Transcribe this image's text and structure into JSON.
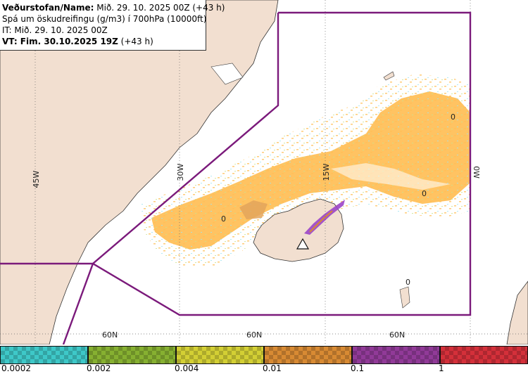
{
  "header": {
    "line1_label": "Veðurstofan/Name:",
    "line1_value": " Mið. 29. 10. 2025 00Z (+43 h)",
    "line2": "Spá um öskudreifingu (g/m3) í 700hPa (10000ft)",
    "line3": "IT: Mið. 29. 10. 2025 00Z",
    "line4_label": "VT:",
    "line4_value": " Fim. 30.10.2025 19Z",
    "line4_extra": " (+43 h)"
  },
  "map": {
    "meridians": [
      "45W",
      "30W",
      "15W",
      "0W"
    ],
    "parallels": [
      "60N",
      "60N",
      "60N"
    ],
    "contour_labels": [
      "0",
      "0",
      "0",
      "0"
    ],
    "colors": {
      "land": "#f2dfd0",
      "sea": "#ffffff",
      "ash_orange": "#ffbe55",
      "ash_purple": "#9b45c8",
      "boundary": "#7b1a7b"
    }
  },
  "legend": {
    "ticks": [
      "0.0002",
      "0.002",
      "0.004",
      "0.01",
      "0.1",
      "1"
    ],
    "colors": [
      "#3ec8c8",
      "#86b031",
      "#d3cf34",
      "#d88a33",
      "#913a98",
      "#d4303a"
    ]
  }
}
